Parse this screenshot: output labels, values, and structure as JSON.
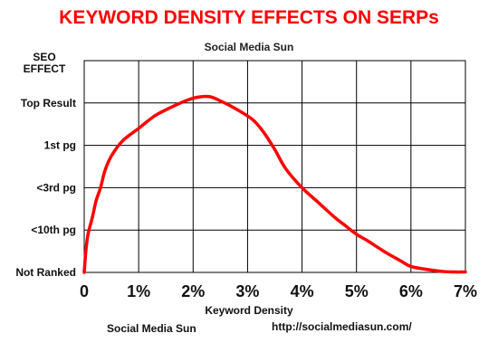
{
  "chart_data": {
    "type": "line",
    "title": "KEYWORD DENSITY EFFECTS ON SERPs",
    "subtitle": "Social Media Sun",
    "xlabel": "Keyword Density",
    "ylabel": "SEO EFFECT",
    "x_tick_labels": [
      "0",
      "1%",
      "2%",
      "3%",
      "4%",
      "5%",
      "6%",
      "7%"
    ],
    "x_ticks": [
      0,
      1,
      2,
      3,
      4,
      5,
      6,
      7
    ],
    "y_tick_labels": [
      "Not Ranked",
      "<10th pg",
      "<3rd pg",
      "1st pg",
      "Top Result"
    ],
    "y_ticks": [
      0,
      1,
      2,
      3,
      4
    ],
    "xlim": [
      0,
      7
    ],
    "ylim": [
      0,
      5
    ],
    "grid": true,
    "line_color": "#ff0000",
    "series": [
      {
        "x": [
          0,
          0.03,
          0.07,
          0.15,
          0.22,
          0.3,
          0.38,
          0.5,
          0.7,
          1.0,
          1.3,
          1.6,
          1.9,
          2.1,
          2.3,
          2.5,
          2.8,
          3.1,
          3.3,
          3.5,
          3.7,
          4.0,
          4.3,
          4.6,
          4.8,
          5.0,
          5.2,
          5.5,
          5.8,
          6.0,
          6.3,
          6.6,
          6.8,
          7.0
        ],
        "y": [
          0,
          0.5,
          0.9,
          1.3,
          1.7,
          2.0,
          2.4,
          2.75,
          3.1,
          3.4,
          3.7,
          3.9,
          4.07,
          4.14,
          4.15,
          4.05,
          3.85,
          3.6,
          3.3,
          2.9,
          2.45,
          2.0,
          1.65,
          1.3,
          1.1,
          0.9,
          0.75,
          0.5,
          0.28,
          0.14,
          0.07,
          0.02,
          0.01,
          0.01
        ]
      }
    ]
  },
  "footer": {
    "left": "Social Media Sun",
    "right": "http://socialmediasun.com/"
  }
}
